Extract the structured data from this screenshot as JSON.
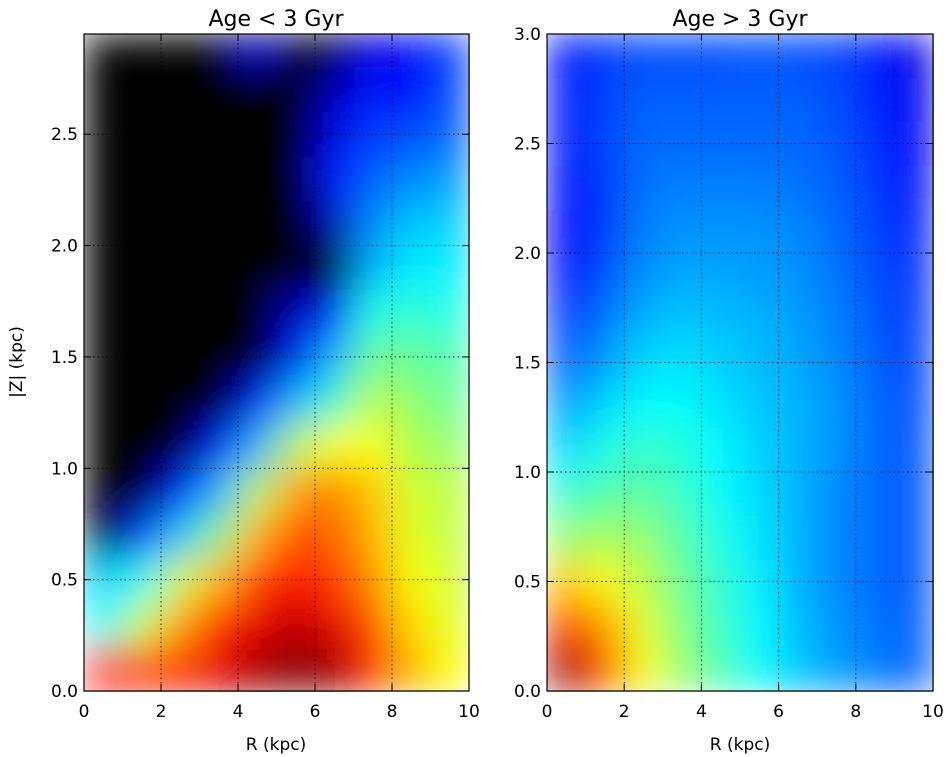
{
  "chart_data": [
    {
      "type": "heatmap",
      "title": "Age < 3 Gyr",
      "xlabel": "R (kpc)",
      "ylabel": "|Z| (kpc)",
      "xlim": [
        0,
        10
      ],
      "ylim": [
        0,
        2.95
      ],
      "xticks": [
        0,
        2,
        4,
        6,
        8,
        10
      ],
      "xtick_labels": [
        "0",
        "2",
        "4",
        "6",
        "8",
        "10"
      ],
      "yticks": [
        0.0,
        0.5,
        1.0,
        1.5,
        2.0,
        2.5
      ],
      "ytick_labels": [
        "0.0",
        "0.5",
        "1.0",
        "1.5",
        "2.0",
        "2.5"
      ],
      "grid": true,
      "colormap": "jet, with zero-density regions black",
      "x": [
        0.5,
        1.5,
        2.5,
        3.5,
        4.5,
        5.5,
        6.5,
        7.5,
        8.5,
        9.5
      ],
      "y": [
        0.1,
        0.3,
        0.5,
        0.7,
        0.9,
        1.1,
        1.3,
        1.5,
        1.7,
        1.9,
        2.1,
        2.3,
        2.5,
        2.7,
        2.9
      ],
      "values": [
        [
          0.85,
          0.83,
          0.85,
          0.9,
          0.96,
          1.0,
          0.97,
          0.85,
          0.7,
          0.62
        ],
        [
          0.38,
          0.58,
          0.72,
          0.84,
          0.9,
          0.94,
          0.9,
          0.8,
          0.66,
          0.6
        ],
        [
          0.33,
          0.38,
          0.58,
          0.7,
          0.82,
          0.86,
          0.82,
          0.74,
          0.62,
          0.58
        ],
        [
          -1,
          0.18,
          0.32,
          0.5,
          0.7,
          0.8,
          0.78,
          0.7,
          0.6,
          0.56
        ],
        [
          -1,
          -1,
          0.12,
          0.3,
          0.55,
          0.72,
          0.75,
          0.68,
          0.58,
          0.56
        ],
        [
          -1,
          -1,
          -1,
          0.12,
          0.3,
          0.55,
          0.62,
          0.62,
          0.55,
          0.52
        ],
        [
          -1,
          -1,
          -1,
          -1,
          0.12,
          0.3,
          0.42,
          0.56,
          0.52,
          0.48
        ],
        [
          -1,
          -1,
          -1,
          -1,
          -1,
          0.12,
          0.3,
          0.48,
          0.48,
          0.45
        ],
        [
          -1,
          -1,
          -1,
          -1,
          -1,
          0.05,
          0.15,
          0.4,
          0.42,
          0.4
        ],
        [
          -1,
          -1,
          -1,
          -1,
          -1,
          -1,
          -1,
          0.3,
          0.36,
          0.36
        ],
        [
          -1,
          -1,
          -1,
          -1,
          -1,
          -1,
          0.05,
          0.26,
          0.32,
          0.33
        ],
        [
          -1,
          -1,
          -1,
          -1,
          -1,
          -1,
          0.15,
          0.22,
          0.26,
          0.28
        ],
        [
          -1,
          -1,
          -1,
          -1,
          -1,
          -1,
          0.1,
          0.18,
          0.2,
          0.22
        ],
        [
          -1,
          -1,
          -1,
          -1,
          -1,
          -1,
          0.05,
          0.14,
          0.12,
          0.2
        ],
        [
          -1,
          -1,
          -1,
          -1,
          0.08,
          -1,
          -1,
          0.1,
          0.12,
          0.18
        ]
      ]
    },
    {
      "type": "heatmap",
      "title": "Age > 3 Gyr",
      "xlabel": "R (kpc)",
      "ylabel": "",
      "xlim": [
        0,
        10
      ],
      "ylim": [
        0,
        3.0
      ],
      "xticks": [
        0,
        2,
        4,
        6,
        8,
        10
      ],
      "xtick_labels": [
        "0",
        "2",
        "4",
        "6",
        "8",
        "10"
      ],
      "yticks": [
        0.0,
        0.5,
        1.0,
        1.5,
        2.0,
        2.5,
        3.0
      ],
      "ytick_labels": [
        "0.0",
        "0.5",
        "1.0",
        "1.5",
        "2.0",
        "2.5",
        "3.0"
      ],
      "grid": true,
      "colormap": "jet",
      "x": [
        0.5,
        1.5,
        2.5,
        3.5,
        4.5,
        5.5,
        6.5,
        7.5,
        8.5,
        9.5
      ],
      "y": [
        0.1,
        0.3,
        0.5,
        0.7,
        0.9,
        1.1,
        1.3,
        1.5,
        1.7,
        1.9,
        2.1,
        2.3,
        2.5,
        2.7,
        2.9
      ],
      "values": [
        [
          0.97,
          0.8,
          0.62,
          0.52,
          0.45,
          0.38,
          0.32,
          0.28,
          0.25,
          0.22
        ],
        [
          0.85,
          0.72,
          0.6,
          0.5,
          0.43,
          0.37,
          0.31,
          0.27,
          0.24,
          0.22
        ],
        [
          0.68,
          0.62,
          0.56,
          0.48,
          0.42,
          0.36,
          0.3,
          0.26,
          0.23,
          0.21
        ],
        [
          0.52,
          0.54,
          0.52,
          0.46,
          0.4,
          0.35,
          0.3,
          0.26,
          0.23,
          0.21
        ],
        [
          0.42,
          0.46,
          0.47,
          0.43,
          0.38,
          0.34,
          0.3,
          0.26,
          0.23,
          0.21
        ],
        [
          0.34,
          0.4,
          0.43,
          0.41,
          0.37,
          0.33,
          0.3,
          0.27,
          0.23,
          0.21
        ],
        [
          0.28,
          0.34,
          0.38,
          0.38,
          0.35,
          0.32,
          0.3,
          0.27,
          0.23,
          0.2
        ],
        [
          0.22,
          0.28,
          0.34,
          0.35,
          0.33,
          0.31,
          0.29,
          0.26,
          0.22,
          0.19
        ],
        [
          0.18,
          0.24,
          0.3,
          0.32,
          0.31,
          0.3,
          0.28,
          0.25,
          0.21,
          0.18
        ],
        [
          0.14,
          0.2,
          0.27,
          0.29,
          0.29,
          0.28,
          0.27,
          0.24,
          0.2,
          0.17
        ],
        [
          0.13,
          0.18,
          0.25,
          0.27,
          0.27,
          0.27,
          0.26,
          0.23,
          0.19,
          0.16
        ],
        [
          0.14,
          0.18,
          0.24,
          0.25,
          0.25,
          0.25,
          0.24,
          0.22,
          0.18,
          0.14
        ],
        [
          0.15,
          0.19,
          0.23,
          0.23,
          0.23,
          0.23,
          0.23,
          0.21,
          0.17,
          0.12
        ],
        [
          0.15,
          0.19,
          0.22,
          0.22,
          0.22,
          0.22,
          0.22,
          0.2,
          0.16,
          0.11
        ],
        [
          0.14,
          0.18,
          0.2,
          0.2,
          0.2,
          0.21,
          0.2,
          0.19,
          0.15,
          0.1
        ]
      ]
    }
  ]
}
